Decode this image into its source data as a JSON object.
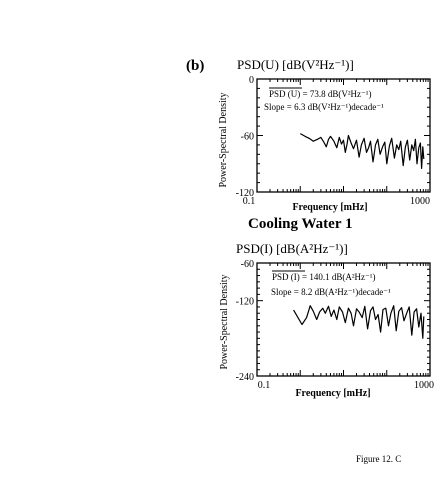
{
  "panel_label": "(b)",
  "section_title": "Cooling Water 1",
  "caption": "Figure 12.   C",
  "chart_data": [
    {
      "type": "line",
      "title": "PSD(U) [dB(V²Hz⁻¹)]",
      "ylabel": "Power-Spectral Density",
      "xlabel": "Frequency [mHz]",
      "xscale": "log",
      "xlim": [
        0.1,
        1000
      ],
      "ylim": [
        -120,
        0
      ],
      "xticks": [
        "0.1",
        "1000"
      ],
      "yticks": [
        "0",
        "-60",
        "-120"
      ],
      "annotations": [
        "PSD (U) = 73.8 dB(V²Hz⁻¹)",
        "Slope = 6.3 dB(V²Hz⁻¹)decade⁻¹"
      ],
      "series": [
        {
          "x": [
            1.0,
            1.3,
            1.6,
            2.0,
            2.5,
            3.0,
            3.5,
            4.0,
            4.5,
            5.0,
            6.0,
            7.0,
            8.0,
            9.0,
            10,
            11,
            12,
            13,
            15,
            17,
            20,
            23,
            26,
            30,
            34,
            38,
            42,
            48,
            55,
            62,
            70,
            80,
            90,
            100,
            115,
            130,
            150,
            170,
            190,
            210,
            240,
            270,
            300,
            340,
            380,
            420,
            460,
            500,
            550,
            600,
            640,
            680,
            720
          ],
          "y": [
            -58,
            -61,
            -63,
            -66,
            -64,
            -62,
            -67,
            -72,
            -64,
            -61,
            -66,
            -73,
            -62,
            -69,
            -65,
            -78,
            -70,
            -60,
            -68,
            -74,
            -65,
            -83,
            -70,
            -63,
            -78,
            -73,
            -66,
            -88,
            -70,
            -64,
            -80,
            -72,
            -67,
            -90,
            -71,
            -63,
            -84,
            -70,
            -75,
            -66,
            -92,
            -72,
            -65,
            -86,
            -70,
            -76,
            -64,
            -90,
            -73,
            -68,
            -95,
            -72,
            -85
          ]
        }
      ]
    },
    {
      "type": "line",
      "title": "PSD(I) [dB(A²Hz⁻¹)]",
      "ylabel": "Power-Spectral Density",
      "xlabel": "Frequency [mHz]",
      "xscale": "log",
      "xlim": [
        0.1,
        1000
      ],
      "ylim": [
        -240,
        -60
      ],
      "xticks": [
        "0.1",
        "1000"
      ],
      "yticks": [
        "-60",
        "-120",
        "-240"
      ],
      "annotations": [
        "PSD (I) = 140.1 dB(A²Hz⁻¹)",
        "Slope = 8.2 dB(A²Hz⁻¹)decade⁻¹"
      ],
      "series": [
        {
          "x": [
            0.7,
            0.9,
            1.1,
            1.4,
            1.7,
            2.0,
            2.4,
            2.8,
            3.3,
            3.8,
            4.5,
            5.2,
            6.0,
            7.0,
            8.0,
            9.5,
            11,
            13,
            15,
            17,
            20,
            23,
            27,
            31,
            36,
            42,
            48,
            55,
            63,
            72,
            82,
            95,
            110,
            125,
            145,
            165,
            190,
            220,
            250,
            290,
            330,
            380,
            430,
            490,
            550,
            620,
            680,
            720
          ],
          "y": [
            -135,
            -148,
            -158,
            -147,
            -128,
            -137,
            -150,
            -138,
            -132,
            -140,
            -129,
            -145,
            -135,
            -150,
            -130,
            -138,
            -155,
            -132,
            -140,
            -160,
            -133,
            -138,
            -147,
            -129,
            -165,
            -136,
            -130,
            -150,
            -142,
            -170,
            -134,
            -132,
            -160,
            -140,
            -128,
            -168,
            -137,
            -131,
            -152,
            -140,
            -130,
            -175,
            -138,
            -133,
            -162,
            -140,
            -180,
            -145
          ]
        }
      ]
    }
  ]
}
